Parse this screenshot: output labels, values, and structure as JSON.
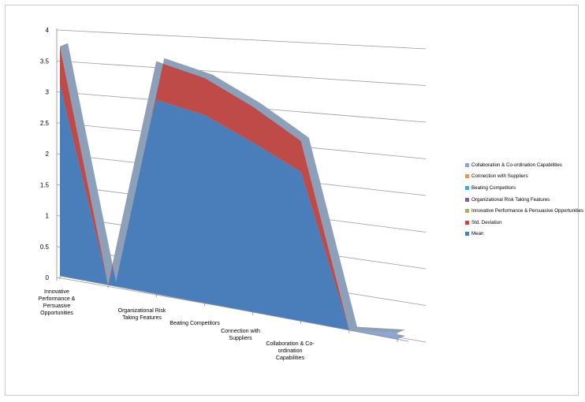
{
  "chart_data": {
    "type": "area",
    "subtype": "3d-stacked-area",
    "categories": [
      "Innovative Performance & Persuasive Opportunities",
      "",
      "Organizational Risk Taking Features",
      "Beating Competitors",
      "Connection with Suppliers",
      "Collaboration & Co-ordination Capabilities",
      "",
      ""
    ],
    "category_labels": [
      [
        "Innovative",
        "Performance &",
        "Persuasive",
        "Opportunities"
      ],
      [],
      [
        "Organizational Risk",
        "Taking Features"
      ],
      [
        "Beating Competitors"
      ],
      [
        "Connection with",
        "Suppliers"
      ],
      [
        "Collaboration & Co-",
        "ordination",
        "Capabilities"
      ],
      [],
      []
    ],
    "series": [
      {
        "name": "Mean",
        "color": "#4a7ebb",
        "values": [
          3.1,
          0,
          3.15,
          3.05,
          2.75,
          2.42,
          0,
          0
        ]
      },
      {
        "name": "Std. Deviation",
        "color": "#be4b48",
        "values": [
          0.62,
          0,
          0.62,
          0.6,
          0.58,
          0.5,
          0,
          0
        ]
      },
      {
        "name": "Innovative Performance & Persuasive Opportunities",
        "color": "#98b954",
        "values": [
          0,
          0,
          0,
          0,
          0,
          0,
          0,
          0
        ]
      },
      {
        "name": "Organizational Risk Taking Features",
        "color": "#7d60a0",
        "values": [
          0,
          0,
          0,
          0,
          0,
          0,
          0,
          0
        ]
      },
      {
        "name": "Beating Competitors",
        "color": "#46aac5",
        "values": [
          0,
          0,
          0,
          0,
          0,
          0,
          0,
          0
        ]
      },
      {
        "name": "Connection with Suppliers",
        "color": "#f69240",
        "values": [
          0,
          0,
          0,
          0,
          0,
          0,
          0,
          0
        ]
      },
      {
        "name": "Collaboration & Co-ordination Capabilities",
        "color": "#8ca6d6",
        "values": [
          0,
          0,
          0,
          0,
          0,
          0,
          0,
          0.1
        ]
      }
    ],
    "y_ticks": [
      "0",
      "0.5",
      "1",
      "1.5",
      "2",
      "2.5",
      "3",
      "3.5",
      "4"
    ],
    "ylim": [
      0,
      4
    ],
    "grid": true,
    "legend_position": "right",
    "title": "",
    "xlabel": "",
    "ylabel": ""
  },
  "legend_items": [
    {
      "label": "Collaboration & Co-ordination Capabilities",
      "color": "#8ca6d6"
    },
    {
      "label": "Connection with Suppliers",
      "color": "#f69240"
    },
    {
      "label": "Beating Competitors",
      "color": "#46aac5"
    },
    {
      "label": "Organizational Risk Taking Features",
      "color": "#7d60a0"
    },
    {
      "label": "Innovative Performance & Persuasive Opportunities",
      "color": "#98b954"
    },
    {
      "label": "Std. Deviation",
      "color": "#be4b48"
    },
    {
      "label": "Mean",
      "color": "#4a7ebb"
    }
  ],
  "colors": {
    "depth_face": "#8da0ba",
    "grid": "#9a9a9a",
    "border": "#c8c8c8"
  }
}
